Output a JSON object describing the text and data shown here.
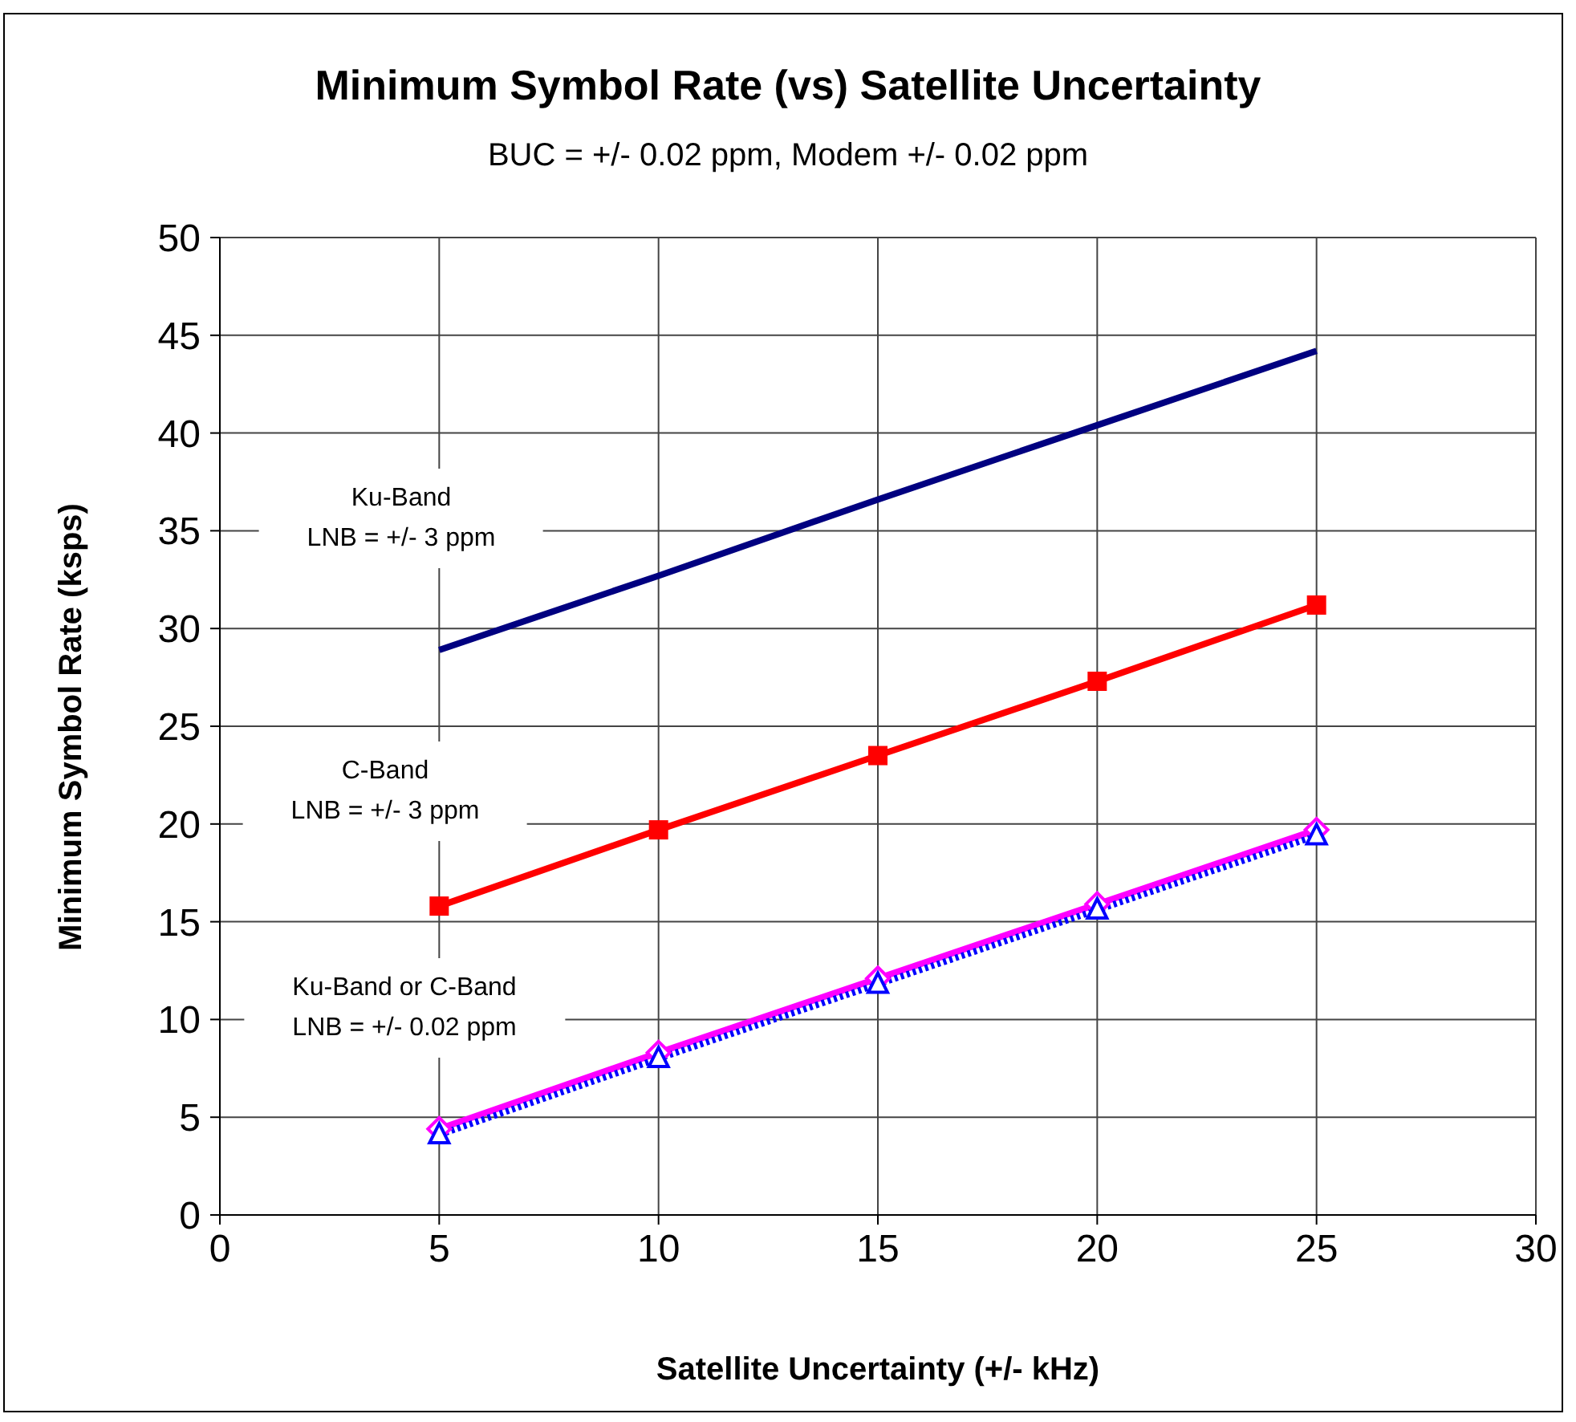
{
  "chart_data": {
    "type": "line",
    "title": "Minimum Symbol Rate (vs) Satellite Uncertainty",
    "subtitle": "BUC = +/- 0.02 ppm, Modem +/- 0.02 ppm",
    "xlabel": "Satellite Uncertainty (+/- kHz)",
    "ylabel": "Minimum Symbol Rate (ksps)",
    "x": [
      5,
      10,
      15,
      20,
      25
    ],
    "series": [
      {
        "color": "#000080",
        "values": [
          28.9,
          32.7,
          36.6,
          40.4,
          44.2
        ],
        "marker": "none",
        "line_style": "solid"
      },
      {
        "color": "#ff0000",
        "values": [
          15.8,
          19.7,
          23.5,
          27.3,
          31.2
        ],
        "marker": "square",
        "line_style": "solid"
      },
      {
        "color": "#ff00ff",
        "values": [
          4.4,
          8.3,
          12.1,
          15.9,
          19.7
        ],
        "marker": "diamond",
        "line_style": "solid"
      },
      {
        "color": "#0000ff",
        "values": [
          4.1,
          8.0,
          11.8,
          15.6,
          19.4
        ],
        "marker": "triangle",
        "line_style": "dotted"
      }
    ],
    "xlim": [
      0,
      30
    ],
    "xticks": [
      0,
      5,
      10,
      15,
      20,
      25,
      30
    ],
    "ylim": [
      0,
      50
    ],
    "yticks": [
      0,
      5,
      10,
      15,
      20,
      25,
      30,
      35,
      40,
      45,
      50
    ],
    "grid": true,
    "legend": false,
    "annotations": [
      "Ku-Band\nLNB = +/- 3 ppm",
      "C-Band\nLNB = +/- 3 ppm",
      "Ku-Band or C-Band\nLNB = +/- 0.02 ppm"
    ]
  }
}
